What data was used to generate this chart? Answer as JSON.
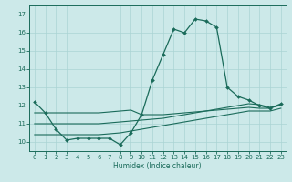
{
  "xlabel": "Humidex (Indice chaleur)",
  "background_color": "#cce9e9",
  "line_color": "#1a6b5a",
  "xlim": [
    -0.5,
    23.5
  ],
  "ylim": [
    9.5,
    17.5
  ],
  "yticks": [
    10,
    11,
    12,
    13,
    14,
    15,
    16,
    17
  ],
  "xticks": [
    0,
    1,
    2,
    3,
    4,
    5,
    6,
    7,
    8,
    9,
    10,
    11,
    12,
    13,
    14,
    15,
    16,
    17,
    18,
    19,
    20,
    21,
    22,
    23
  ],
  "x_main": [
    0,
    1,
    2,
    3,
    4,
    5,
    6,
    7,
    8,
    9,
    10,
    11,
    12,
    13,
    14,
    15,
    16,
    17,
    18,
    19,
    20,
    21,
    22,
    23
  ],
  "y_main": [
    12.2,
    11.6,
    10.7,
    10.1,
    10.2,
    10.2,
    10.2,
    10.2,
    9.85,
    10.5,
    11.5,
    13.4,
    14.8,
    16.2,
    16.0,
    16.75,
    16.65,
    16.3,
    13.0,
    12.5,
    12.3,
    12.0,
    11.85,
    12.1
  ],
  "x_line2": [
    0,
    1,
    2,
    3,
    4,
    5,
    6,
    7,
    8,
    9,
    10,
    11,
    12,
    13,
    14,
    15,
    16,
    17,
    18,
    19,
    20,
    21,
    22,
    23
  ],
  "y_line2": [
    11.6,
    11.6,
    11.6,
    11.6,
    11.6,
    11.6,
    11.6,
    11.65,
    11.7,
    11.75,
    11.5,
    11.5,
    11.5,
    11.55,
    11.6,
    11.65,
    11.7,
    11.75,
    11.8,
    11.85,
    11.9,
    11.85,
    11.85,
    12.05
  ],
  "x_line3": [
    0,
    1,
    2,
    3,
    4,
    5,
    6,
    7,
    8,
    9,
    10,
    11,
    12,
    13,
    14,
    15,
    16,
    17,
    18,
    19,
    20,
    21,
    22,
    23
  ],
  "y_line3": [
    10.4,
    10.4,
    10.4,
    10.4,
    10.4,
    10.4,
    10.4,
    10.45,
    10.5,
    10.6,
    10.7,
    10.8,
    10.9,
    11.0,
    11.1,
    11.2,
    11.3,
    11.4,
    11.5,
    11.6,
    11.7,
    11.7,
    11.7,
    11.85
  ],
  "x_line4": [
    0,
    1,
    2,
    3,
    4,
    5,
    6,
    7,
    8,
    9,
    10,
    11,
    12,
    13,
    14,
    15,
    16,
    17,
    18,
    19,
    20,
    21,
    22,
    23
  ],
  "y_line4": [
    11.0,
    11.0,
    11.0,
    11.0,
    11.0,
    11.0,
    11.0,
    11.05,
    11.1,
    11.15,
    11.2,
    11.25,
    11.3,
    11.4,
    11.5,
    11.6,
    11.7,
    11.8,
    11.9,
    12.0,
    12.1,
    12.05,
    11.9,
    12.0
  ]
}
